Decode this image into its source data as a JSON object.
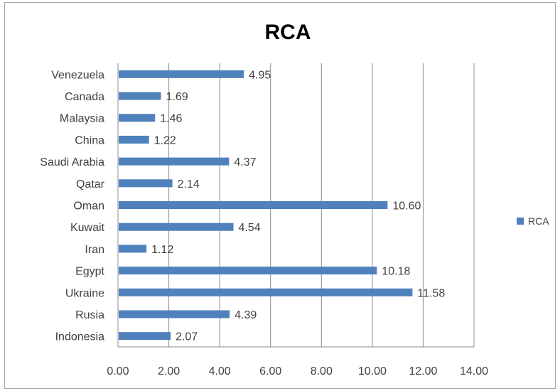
{
  "chart_data": {
    "type": "bar",
    "orientation": "horizontal",
    "title": "RCA",
    "categories": [
      "Indonesia",
      "Rusia",
      "Ukraine",
      "Egypt",
      "Iran",
      "Kuwait",
      "Oman",
      "Qatar",
      "Saudi Arabia",
      "China",
      "Malaysia",
      "Canada",
      "Venezuela"
    ],
    "series": [
      {
        "name": "RCA",
        "values": [
          2.07,
          4.39,
          11.58,
          10.18,
          1.12,
          4.54,
          10.6,
          2.14,
          4.37,
          1.22,
          1.46,
          1.69,
          4.95
        ],
        "labels": [
          "2.07",
          "4.39",
          "11.58",
          "10.18",
          "1.12",
          "4.54",
          "10.60",
          "2.14",
          "4.37",
          "1.22",
          "1.46",
          "1.69",
          "4.95"
        ]
      }
    ],
    "xlim": [
      0,
      14
    ],
    "xticks": [
      "0.00",
      "2.00",
      "4.00",
      "6.00",
      "8.00",
      "10.00",
      "12.00",
      "14.00"
    ],
    "xlabel": "",
    "ylabel": "",
    "grid": "vertical",
    "legend": "right",
    "bar_color": "#4f81bd"
  }
}
